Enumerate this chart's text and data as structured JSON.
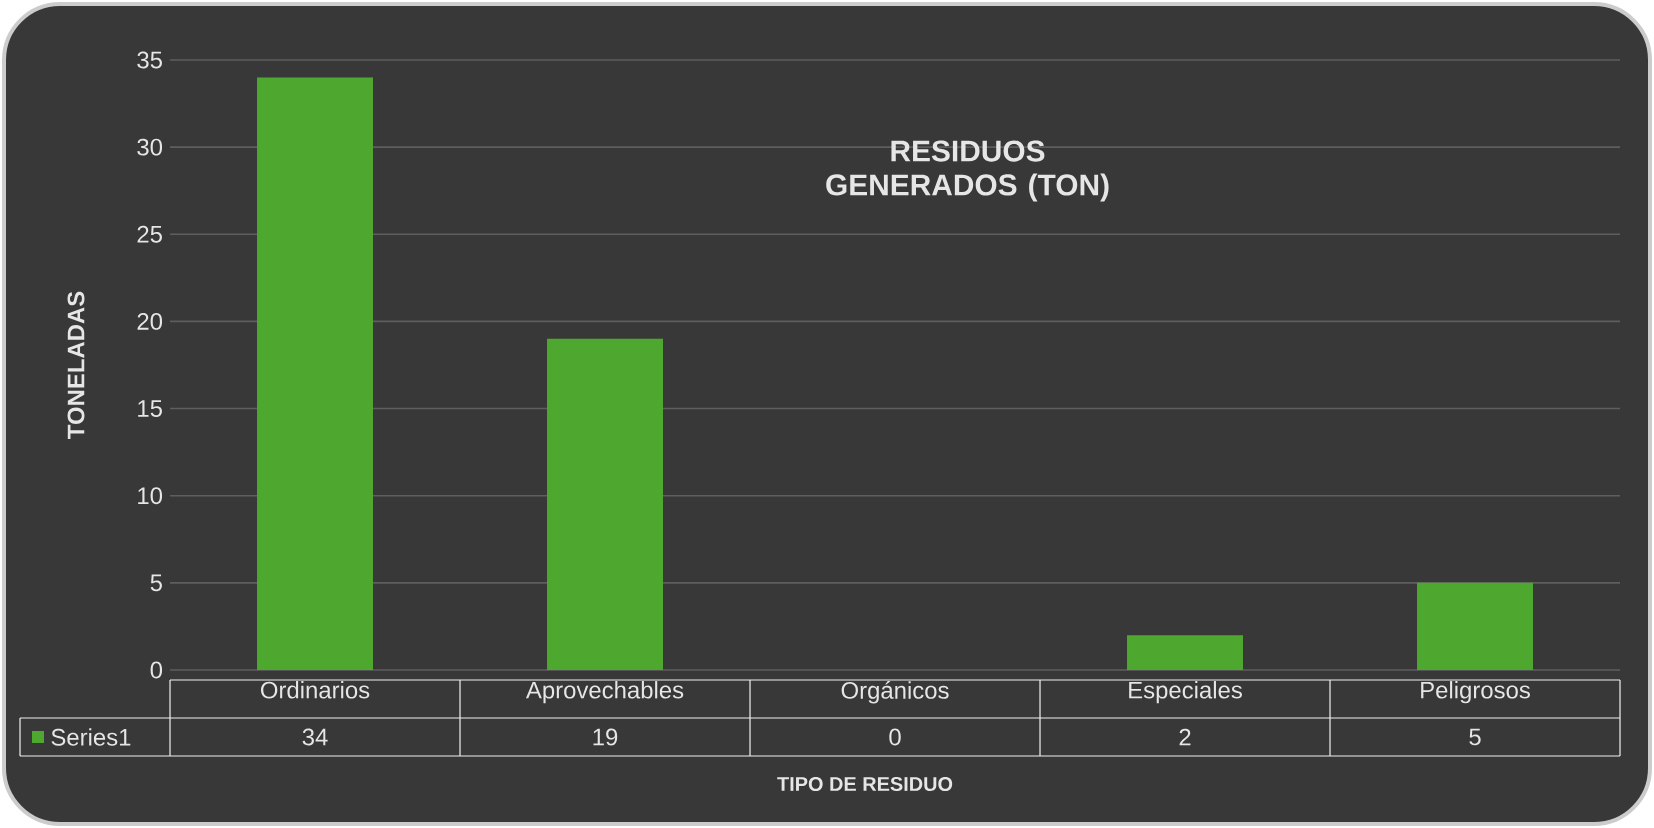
{
  "chart_data": {
    "type": "bar",
    "title": "RESIDUOS GENERADOS (TON)",
    "xlabel": "TIPO DE RESIDUO",
    "ylabel": "TONELADAS",
    "categories": [
      "Ordinarios",
      "Aprovechables",
      "Orgánicos",
      "Especiales",
      "Peligrosos"
    ],
    "series": [
      {
        "name": "Series1",
        "color": "#4ea72e",
        "values": [
          34,
          19,
          0,
          2,
          5
        ]
      }
    ],
    "ylim": [
      0,
      35
    ],
    "yticks": [
      0,
      5,
      10,
      15,
      20,
      25,
      30,
      35
    ],
    "grid": "y",
    "legend": "bottom left",
    "data_labels": true
  }
}
